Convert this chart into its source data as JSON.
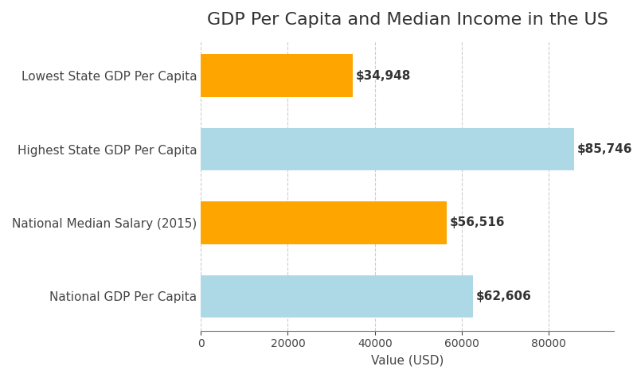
{
  "title": "GDP Per Capita and Median Income in the US",
  "categories": [
    "National GDP Per Capita",
    "National Median Salary (2015)",
    "Highest State GDP Per Capita",
    "Lowest State GDP Per Capita"
  ],
  "values": [
    62606,
    56516,
    85746,
    34948
  ],
  "bar_colors": [
    "#ADD8E6",
    "#FFA500",
    "#ADD8E6",
    "#FFA500"
  ],
  "labels": [
    "$62,606",
    "$56,516",
    "$85,746",
    "$34,948"
  ],
  "xlabel": "Value (USD)",
  "xlim": [
    0,
    95000
  ],
  "background_color": "#ffffff",
  "title_fontsize": 16,
  "label_fontsize": 11,
  "tick_fontsize": 10,
  "grid_color": "#cccccc",
  "bar_height": 0.58
}
